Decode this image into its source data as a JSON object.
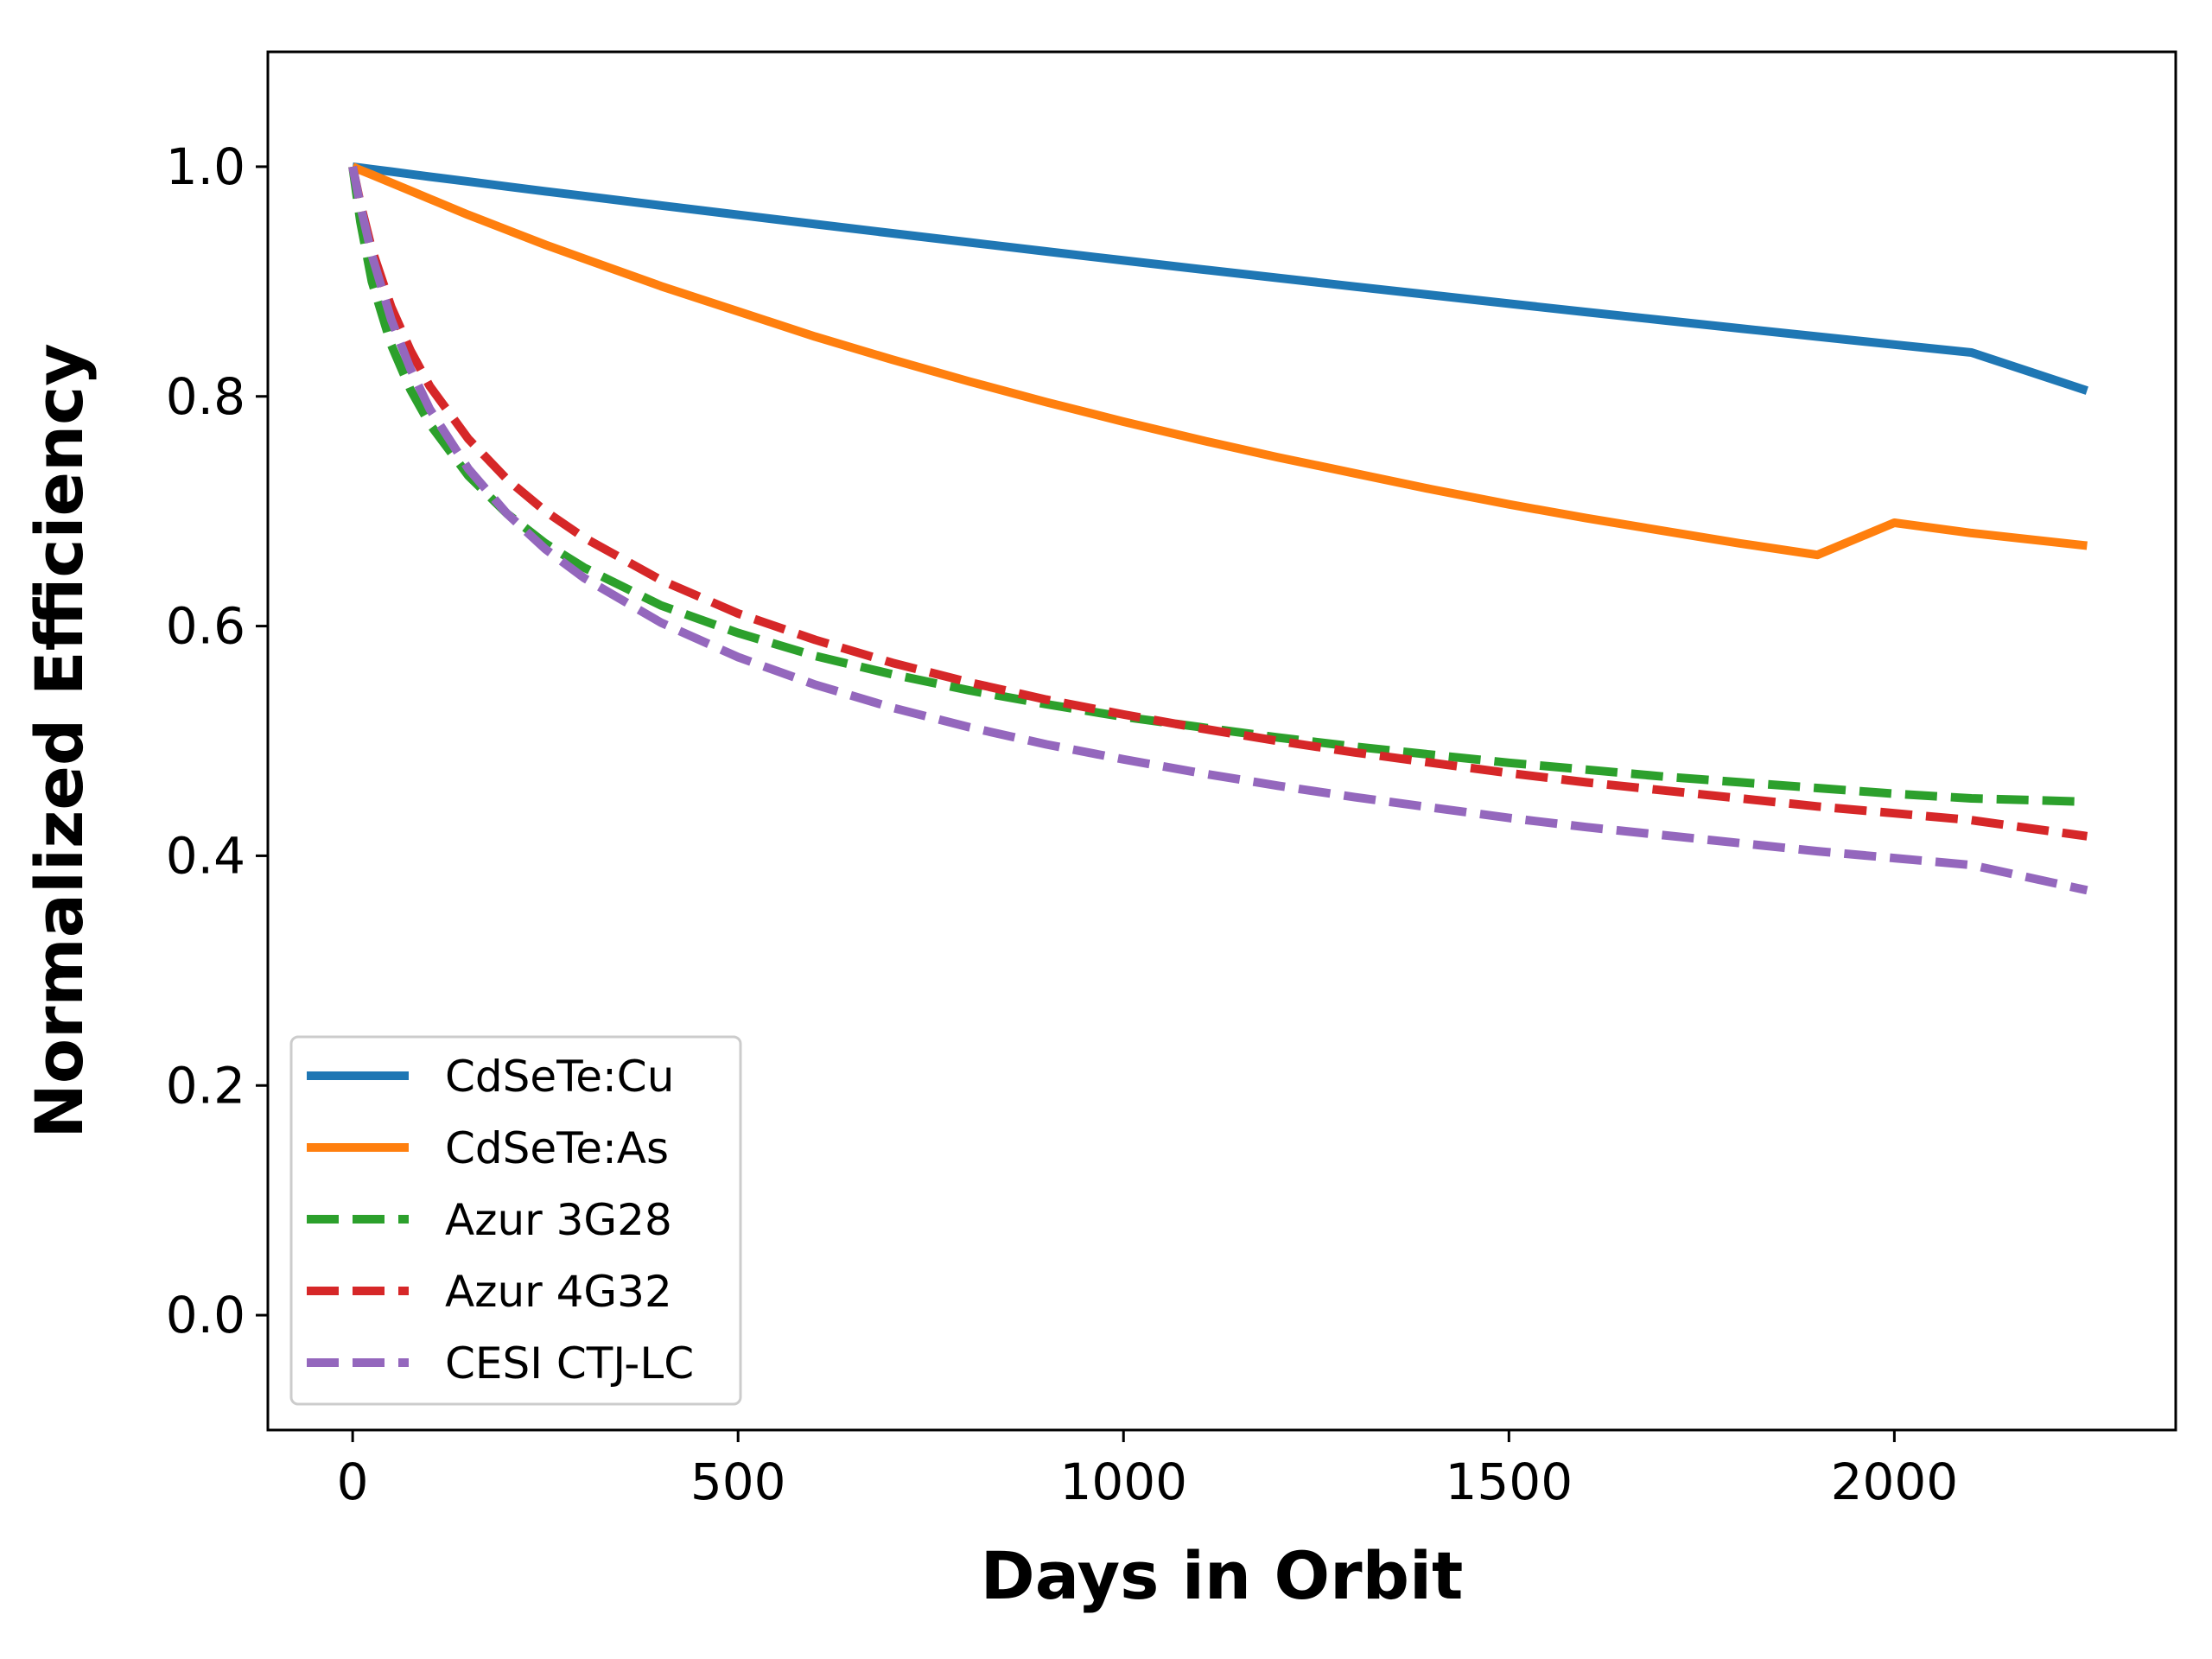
{
  "chart_data": {
    "type": "line",
    "title": "",
    "xlabel": "Days in Orbit",
    "ylabel": "Normalized Efficiency",
    "xlim": [
      -110,
      2365
    ],
    "ylim": [
      -0.1,
      1.1
    ],
    "xticks": [
      0,
      500,
      1000,
      1500,
      2000
    ],
    "xtick_labels": [
      "0",
      "500",
      "1000",
      "1500",
      "2000"
    ],
    "yticks": [
      0.0,
      0.2,
      0.4,
      0.6,
      0.8,
      1.0
    ],
    "ytick_labels": [
      "0.0",
      "0.2",
      "0.4",
      "0.6",
      "0.8",
      "1.0"
    ],
    "grid": false,
    "legend_position": "lower-left",
    "x": [
      0,
      10,
      25,
      50,
      75,
      100,
      150,
      200,
      250,
      300,
      400,
      500,
      600,
      700,
      800,
      900,
      1000,
      1100,
      1200,
      1300,
      1400,
      1500,
      1600,
      1700,
      1800,
      1900,
      2000,
      2100,
      2250
    ],
    "series": [
      {
        "name": "CdSeTe:Cu",
        "color": "#1f77b4",
        "dashed": false,
        "values": [
          1.0,
          0.9991,
          0.9978,
          0.9957,
          0.9935,
          0.9913,
          0.9871,
          0.9828,
          0.9786,
          0.9745,
          0.9662,
          0.9581,
          0.95,
          0.942,
          0.9341,
          0.9262,
          0.9184,
          0.9107,
          0.9032,
          0.8956,
          0.8882,
          0.8808,
          0.8735,
          0.8663,
          0.8592,
          0.8521,
          0.8451,
          0.8382,
          0.805
        ]
      },
      {
        "name": "CdSeTe:As",
        "color": "#ff7f0e",
        "dashed": false,
        "values": [
          1.0,
          0.997,
          0.993,
          0.986,
          0.979,
          0.972,
          0.958,
          0.945,
          0.932,
          0.92,
          0.896,
          0.874,
          0.852,
          0.832,
          0.813,
          0.795,
          0.778,
          0.762,
          0.747,
          0.733,
          0.719,
          0.706,
          0.694,
          0.683,
          0.672,
          0.662,
          0.69,
          0.681,
          0.67
        ]
      },
      {
        "name": "Azur 3G28",
        "color": "#2ca02c",
        "dashed": true,
        "values": [
          1.0,
          0.952,
          0.9,
          0.845,
          0.806,
          0.776,
          0.731,
          0.698,
          0.672,
          0.651,
          0.618,
          0.594,
          0.574,
          0.558,
          0.544,
          0.532,
          0.521,
          0.512,
          0.503,
          0.495,
          0.488,
          0.481,
          0.475,
          0.469,
          0.464,
          0.459,
          0.454,
          0.45,
          0.447
        ]
      },
      {
        "name": "Azur 4G32",
        "color": "#d62728",
        "dashed": true,
        "values": [
          1.0,
          0.968,
          0.928,
          0.878,
          0.84,
          0.809,
          0.763,
          0.728,
          0.7,
          0.677,
          0.64,
          0.611,
          0.588,
          0.568,
          0.551,
          0.536,
          0.523,
          0.511,
          0.5,
          0.49,
          0.481,
          0.472,
          0.464,
          0.457,
          0.45,
          0.443,
          0.437,
          0.431,
          0.417
        ]
      },
      {
        "name": "CESI CTJ-LC",
        "color": "#9467bd",
        "dashed": true,
        "values": [
          1.0,
          0.966,
          0.923,
          0.867,
          0.824,
          0.789,
          0.737,
          0.698,
          0.667,
          0.642,
          0.603,
          0.573,
          0.549,
          0.529,
          0.512,
          0.497,
          0.484,
          0.472,
          0.461,
          0.451,
          0.442,
          0.433,
          0.425,
          0.418,
          0.411,
          0.404,
          0.398,
          0.392,
          0.37
        ]
      }
    ]
  }
}
